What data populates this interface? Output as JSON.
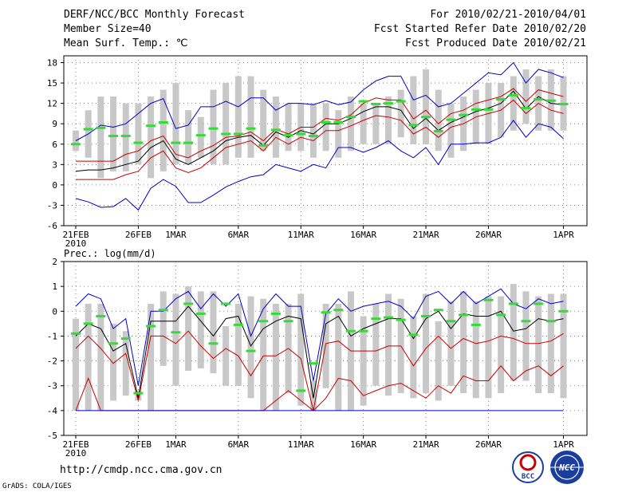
{
  "header": {
    "title": "DERF/NCC/BCC Monthly Forecast",
    "member_size": "Member Size=40",
    "panel1_var": "Mean Surf. Temp.: ℃",
    "period": "For 2010/02/21-2010/04/01",
    "started": "Fcst Started Refer Date 2010/02/20",
    "produced": "Fcst Produced Date 2010/02/21"
  },
  "footer": {
    "url": "http://cmdp.ncc.cma.gov.cn",
    "grads": "GrADS: COLA/IGES",
    "logo_bcc": "BCC",
    "logo_ncc": "NCC"
  },
  "colors": {
    "box": "#c8c8c8",
    "mean": "#000000",
    "spread": "#cc0000",
    "extreme": "#0000cc",
    "obs": "#33dd33",
    "grid": "#666666"
  },
  "chart_data": [
    {
      "type": "line",
      "title": "Mean Surf. Temp.: ℃",
      "ylim": [
        -6,
        19
      ],
      "yticks": [
        -6,
        -3,
        0,
        3,
        6,
        9,
        12,
        15,
        18
      ],
      "x_labels": [
        {
          "day": 0,
          "text": "21FEB"
        },
        {
          "day": 5,
          "text": "26FEB"
        },
        {
          "day": 8,
          "text": "1MAR"
        },
        {
          "day": 13,
          "text": "6MAR"
        },
        {
          "day": 18,
          "text": "11MAR"
        },
        {
          "day": 23,
          "text": "16MAR"
        },
        {
          "day": 28,
          "text": "21MAR"
        },
        {
          "day": 33,
          "text": "26MAR"
        },
        {
          "day": 39,
          "text": "1APR"
        }
      ],
      "year_label": "2010",
      "box_low": [
        5,
        4,
        1,
        2,
        2,
        3,
        1,
        2,
        3,
        3,
        4,
        3,
        3,
        4,
        4,
        5,
        4,
        5,
        5,
        4,
        5,
        4,
        5,
        6,
        6,
        6,
        7,
        6,
        6,
        5,
        4,
        5,
        6,
        6,
        7,
        8,
        9,
        8,
        8,
        8
      ],
      "box_high": [
        8,
        11,
        13,
        13,
        12,
        12,
        13,
        14,
        15,
        11,
        10,
        14,
        15,
        16,
        16,
        14,
        13,
        12,
        12,
        12,
        12,
        11,
        13,
        12,
        12,
        13,
        14,
        16,
        17,
        14,
        12,
        13,
        14,
        15,
        15,
        16,
        17,
        16,
        17,
        16
      ],
      "obs": [
        6.0,
        8.2,
        8.4,
        7.2,
        7.2,
        6.2,
        8.7,
        9.2,
        6.2,
        6.2,
        7.3,
        8.3,
        7.5,
        7.5,
        8.3,
        5.8,
        8.1,
        7.3,
        7.5,
        7.2,
        9.2,
        9.2,
        10.0,
        12.3,
        11.9,
        12.0,
        12.3,
        8.8,
        10.0,
        7.9,
        9.6,
        10.3,
        11.1,
        11.1,
        12.6,
        13.2,
        11.3,
        12.6,
        12.4,
        11.9
      ],
      "series": [
        {
          "name": "max",
          "color": "#0000cc",
          "values": [
            6.5,
            7.5,
            8.8,
            8.5,
            9.0,
            10.5,
            12.0,
            12.7,
            8.3,
            8.8,
            11.5,
            11.5,
            12.3,
            11.5,
            12.8,
            12.8,
            11.0,
            12.0,
            12.0,
            11.8,
            12.4,
            11.8,
            12.2,
            14.0,
            15.3,
            16.0,
            16.0,
            12.5,
            13.2,
            11.5,
            12.0,
            13.5,
            15.0,
            16.5,
            16.2,
            18.0,
            15.0,
            17.0,
            16.5,
            15.8
          ]
        },
        {
          "name": "p75",
          "color": "#cc0000",
          "values": [
            3.5,
            3.5,
            3.5,
            3.5,
            4.5,
            5.0,
            6.5,
            7.2,
            4.5,
            4.0,
            5.0,
            5.8,
            7.0,
            7.2,
            7.8,
            6.5,
            8.2,
            7.5,
            8.5,
            8.5,
            9.8,
            9.5,
            10.3,
            12.0,
            12.8,
            12.5,
            12.5,
            9.7,
            11.0,
            9.0,
            10.5,
            11.0,
            12.0,
            12.5,
            13.0,
            14.2,
            12.3,
            14.0,
            13.5,
            13.0
          ]
        },
        {
          "name": "mean",
          "color": "#000000",
          "values": [
            2.0,
            2.2,
            2.2,
            2.5,
            3.0,
            3.5,
            5.5,
            6.5,
            3.8,
            3.0,
            4.0,
            5.0,
            6.5,
            7.0,
            7.3,
            5.8,
            7.8,
            7.0,
            8.0,
            7.5,
            9.0,
            9.0,
            9.8,
            10.8,
            11.5,
            11.5,
            11.0,
            8.3,
            9.8,
            8.0,
            9.2,
            10.0,
            10.8,
            11.3,
            12.0,
            13.8,
            11.2,
            13.0,
            12.0,
            11.8
          ]
        },
        {
          "name": "p25",
          "color": "#cc0000",
          "values": [
            0.8,
            0.8,
            0.8,
            0.8,
            1.5,
            2.0,
            4.0,
            5.0,
            2.5,
            1.8,
            2.5,
            4.0,
            5.5,
            6.0,
            6.5,
            5.0,
            7.0,
            6.0,
            7.0,
            6.5,
            8.0,
            8.0,
            8.7,
            9.5,
            10.2,
            10.0,
            9.5,
            7.5,
            8.5,
            7.0,
            8.5,
            9.0,
            10.0,
            10.5,
            11.0,
            12.5,
            10.5,
            12.0,
            11.0,
            10.5
          ]
        },
        {
          "name": "min",
          "color": "#0000cc",
          "values": [
            -2.0,
            -2.5,
            -3.3,
            -3.2,
            -2.0,
            -3.7,
            -0.5,
            0.8,
            -0.2,
            -2.6,
            -2.6,
            -1.5,
            -0.3,
            0.5,
            1.2,
            1.5,
            3.0,
            2.5,
            2.0,
            3.0,
            2.5,
            5.5,
            5.5,
            4.8,
            5.5,
            6.5,
            5.0,
            4.0,
            5.5,
            3.0,
            6.0,
            6.0,
            6.2,
            6.2,
            7.0,
            9.5,
            7.0,
            9.0,
            8.5,
            6.8
          ]
        }
      ]
    },
    {
      "type": "line",
      "title": "Prec.: log(mm/d)",
      "ylim": [
        -5,
        2
      ],
      "yticks": [
        -5,
        -4,
        -3,
        -2,
        -1,
        0,
        1,
        2
      ],
      "x_labels": [
        {
          "day": 0,
          "text": "21FEB"
        },
        {
          "day": 5,
          "text": "26FEB"
        },
        {
          "day": 8,
          "text": "1MAR"
        },
        {
          "day": 13,
          "text": "6MAR"
        },
        {
          "day": 18,
          "text": "11MAR"
        },
        {
          "day": 23,
          "text": "16MAR"
        },
        {
          "day": 28,
          "text": "21MAR"
        },
        {
          "day": 33,
          "text": "26MAR"
        },
        {
          "day": 39,
          "text": "1APR"
        }
      ],
      "year_label": "2010",
      "box_low": [
        -4.0,
        -4.0,
        -4.0,
        -3.6,
        -3.4,
        -3.6,
        -4.0,
        -2.2,
        -3.0,
        -2.4,
        -2.3,
        -2.5,
        -3.0,
        -3.0,
        -3.5,
        -4.0,
        -4.0,
        -3.3,
        -3.8,
        -4.0,
        -3.1,
        -4.0,
        -4.0,
        -3.8,
        -3.0,
        -3.4,
        -3.3,
        -3.5,
        -3.3,
        -3.6,
        -3.0,
        -3.3,
        -3.5,
        -3.5,
        -3.3,
        -2.8,
        -2.8,
        -3.3,
        -3.3,
        -3.5
      ],
      "box_high": [
        -0.3,
        0.3,
        0.3,
        -0.5,
        -0.8,
        -3.2,
        0.3,
        0.8,
        0.7,
        1.0,
        0.8,
        0.8,
        -0.6,
        0.3,
        0.6,
        0.5,
        0.3,
        0.3,
        0.7,
        -2.8,
        0.3,
        0.3,
        0.8,
        -0.2,
        0.3,
        0.7,
        0.5,
        -0.2,
        0.7,
        -0.4,
        0.4,
        0.8,
        0.4,
        0.6,
        0.6,
        1.1,
        0.8,
        0.6,
        0.7,
        0.7
      ],
      "obs": [
        -0.9,
        -0.5,
        -0.2,
        -1.3,
        -1.1,
        -3.3,
        -0.6,
        0.05,
        -0.85,
        0.3,
        -0.1,
        -1.3,
        0.3,
        -0.55,
        -1.6,
        -0.4,
        -0.1,
        -0.4,
        -3.2,
        -2.1,
        -0.05,
        0.05,
        -0.8,
        -0.8,
        -0.3,
        -0.25,
        -0.35,
        -0.95,
        -0.2,
        0.05,
        -0.4,
        -0.15,
        -0.55,
        0.45,
        -0.15,
        0.3,
        -0.4,
        0.3,
        -0.4,
        0.0
      ],
      "series": [
        {
          "name": "max",
          "color": "#0000cc",
          "values": [
            0.2,
            0.7,
            0.5,
            -0.7,
            -0.3,
            -3.0,
            0.0,
            0.0,
            0.5,
            0.8,
            0.1,
            0.7,
            0.2,
            0.7,
            -1.0,
            0.1,
            0.7,
            0.2,
            0.2,
            -2.8,
            -0.1,
            0.5,
            0.0,
            0.2,
            0.3,
            0.4,
            0.2,
            -0.3,
            0.6,
            0.8,
            0.3,
            0.8,
            0.3,
            0.6,
            0.9,
            0.3,
            0.1,
            0.5,
            0.3,
            0.4
          ]
        },
        {
          "name": "p75",
          "color": "#000000",
          "values": [
            -1.0,
            -0.5,
            -0.7,
            -1.6,
            -1.3,
            -3.5,
            -0.4,
            -0.4,
            -0.4,
            0.2,
            -0.4,
            -1.0,
            -0.3,
            -0.2,
            -1.4,
            -0.7,
            -0.4,
            -0.2,
            -0.3,
            -3.5,
            -0.5,
            -0.2,
            -1.0,
            -0.7,
            -0.5,
            -0.3,
            -0.3,
            -1.1,
            -0.3,
            0.0,
            -0.7,
            -0.1,
            -0.2,
            -0.2,
            0.0,
            -0.8,
            -0.7,
            -0.3,
            -0.4,
            -0.3
          ]
        },
        {
          "name": "mean",
          "color": "#cc0000",
          "values": [
            -1.5,
            -1.0,
            -1.5,
            -2.1,
            -1.7,
            -3.6,
            -1.0,
            -1.0,
            -1.3,
            -0.8,
            -1.4,
            -1.9,
            -1.5,
            -1.8,
            -2.6,
            -1.8,
            -1.8,
            -1.5,
            -1.9,
            -4.0,
            -1.3,
            -1.2,
            -1.6,
            -1.6,
            -1.6,
            -1.4,
            -1.4,
            -2.2,
            -1.5,
            -1.0,
            -1.5,
            -1.1,
            -1.3,
            -1.2,
            -1.0,
            -1.1,
            -1.3,
            -1.3,
            -1.2,
            -0.9
          ]
        },
        {
          "name": "p25",
          "color": "#cc0000",
          "values": [
            -4.0,
            -2.7,
            -4.0,
            -4.0,
            -4.0,
            -4.0,
            -4.0,
            -4.0,
            -4.0,
            -4.0,
            -4.0,
            -4.0,
            -4.0,
            -4.0,
            -4.0,
            -4.0,
            -3.6,
            -3.2,
            -3.6,
            -4.0,
            -3.5,
            -2.7,
            -2.8,
            -3.4,
            -3.2,
            -3.0,
            -2.9,
            -3.2,
            -3.5,
            -3.0,
            -3.3,
            -2.6,
            -2.8,
            -2.8,
            -2.2,
            -2.8,
            -2.4,
            -2.2,
            -2.6,
            -2.2
          ]
        },
        {
          "name": "min",
          "color": "#0000cc",
          "values": [
            -4.0,
            -4.0,
            -4.0,
            -4.0,
            -4.0,
            -4.0,
            -4.0,
            -4.0,
            -4.0,
            -4.0,
            -4.0,
            -4.0,
            -4.0,
            -4.0,
            -4.0,
            -4.0,
            -4.0,
            -4.0,
            -4.0,
            -4.0,
            -4.0,
            -4.0,
            -4.0,
            -4.0,
            -4.0,
            -4.0,
            -4.0,
            -4.0,
            -4.0,
            -4.0,
            -4.0,
            -4.0,
            -4.0,
            -4.0,
            -4.0,
            -4.0,
            -4.0,
            -4.0,
            -4.0,
            -4.0
          ]
        }
      ]
    }
  ]
}
